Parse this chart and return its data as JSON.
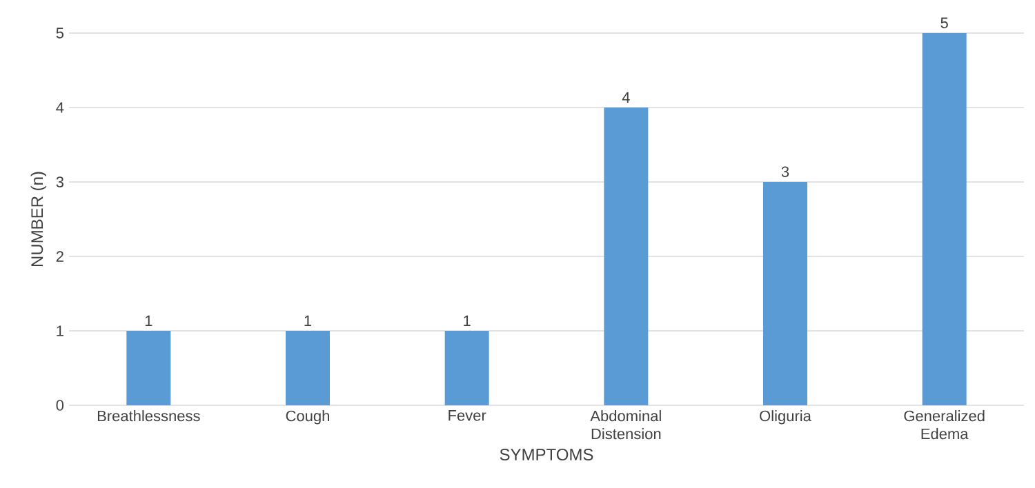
{
  "chart_data": {
    "type": "bar",
    "xlabel": "SYMPTOMS",
    "ylabel": "NUMBER (n)",
    "categories": [
      "Breathlessness",
      "Cough",
      "Fever",
      "Abdominal Distension",
      "Oliguria",
      "Generalized Edema"
    ],
    "values": [
      1,
      1,
      1,
      4,
      3,
      5
    ],
    "color": "#5b9bd5",
    "ylim": [
      0,
      5
    ],
    "yticks": [
      0,
      1,
      2,
      3,
      4,
      5
    ],
    "grid": "y",
    "data_labels": true
  }
}
